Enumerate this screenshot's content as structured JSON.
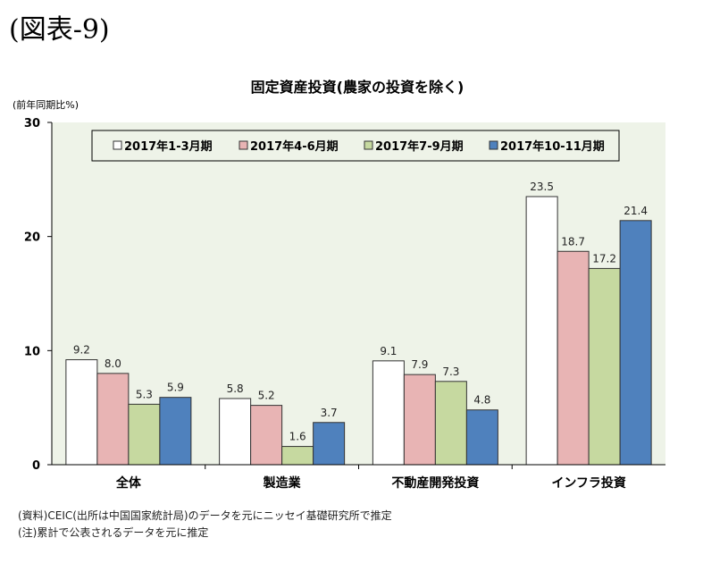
{
  "figure_label": "(図表-9)",
  "chart_data": {
    "type": "bar",
    "title": "固定資産投資(農家の投資を除く)",
    "ylabel": "(前年同期比%)",
    "xlabel": "",
    "ylim": [
      0,
      30
    ],
    "yticks": [
      0,
      10,
      20,
      30
    ],
    "grid": false,
    "legend_position": "top",
    "categories": [
      "全体",
      "製造業",
      "不動産開発投資",
      "インフラ投資"
    ],
    "series": [
      {
        "name": "2017年1-3月期",
        "color": "#ffffff",
        "values": [
          9.2,
          5.8,
          9.1,
          23.5
        ]
      },
      {
        "name": "2017年4-6月期",
        "color": "#e8b4b4",
        "values": [
          8.0,
          5.2,
          7.9,
          18.7
        ]
      },
      {
        "name": "2017年7-9月期",
        "color": "#c6d9a0",
        "values": [
          5.3,
          1.6,
          7.3,
          17.2
        ]
      },
      {
        "name": "2017年10-11月期",
        "color": "#4f81bd",
        "values": [
          5.9,
          3.7,
          4.8,
          21.4
        ]
      }
    ],
    "plot_background": "#eef3e8"
  },
  "notes": [
    "(資料)CEIC(出所は中国国家統計局)のデータを元にニッセイ基礎研究所で推定",
    "(注)累計で公表されるデータを元に推定"
  ]
}
